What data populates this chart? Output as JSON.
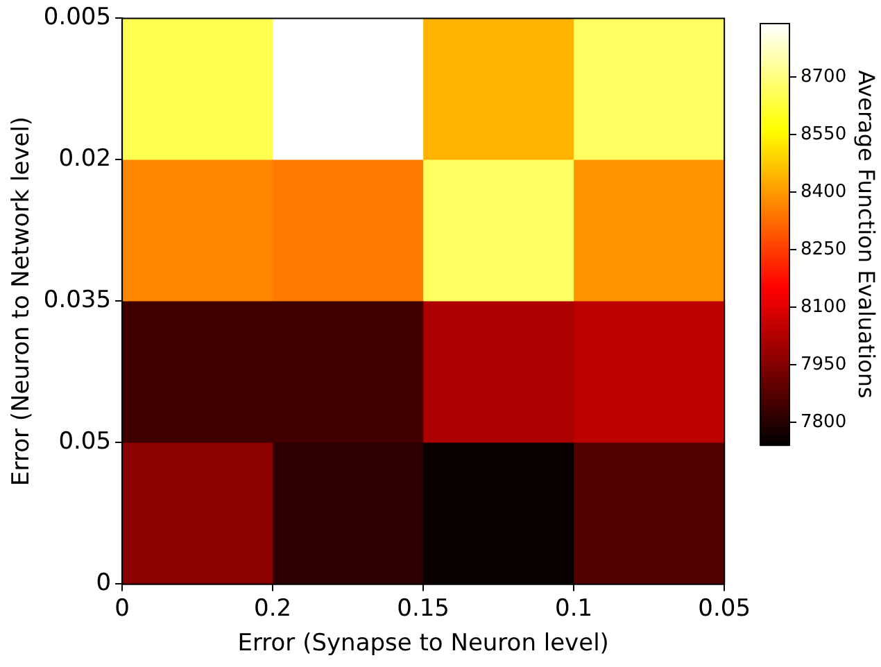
{
  "chart_data": {
    "type": "heatmap",
    "xlabel": "Error (Synapse to Neuron level)",
    "ylabel": "Error (Neuron to Network level)",
    "clabel": "Average Function Evaluations",
    "categories": [
      null,
      null,
      null,
      null
    ],
    "y_categories": [
      null,
      null,
      null,
      null
    ],
    "annotations": [
      "0",
      "0.2",
      "0.15",
      "0.1",
      "0.05",
      "0.005",
      "0.02",
      "0.035",
      "0.05",
      "0"
    ],
    "cells": [
      [
        8650,
        8840,
        8440,
        8670
      ],
      [
        8370,
        8350,
        8670,
        8390
      ],
      [
        7845,
        7845,
        8020,
        8045
      ],
      [
        7965,
        7815,
        7755,
        7875
      ]
    ],
    "clim": [
      7740,
      8840
    ],
    "cticks": [
      7800,
      7950,
      8100,
      8250,
      8400,
      8550,
      8700
    ]
  }
}
